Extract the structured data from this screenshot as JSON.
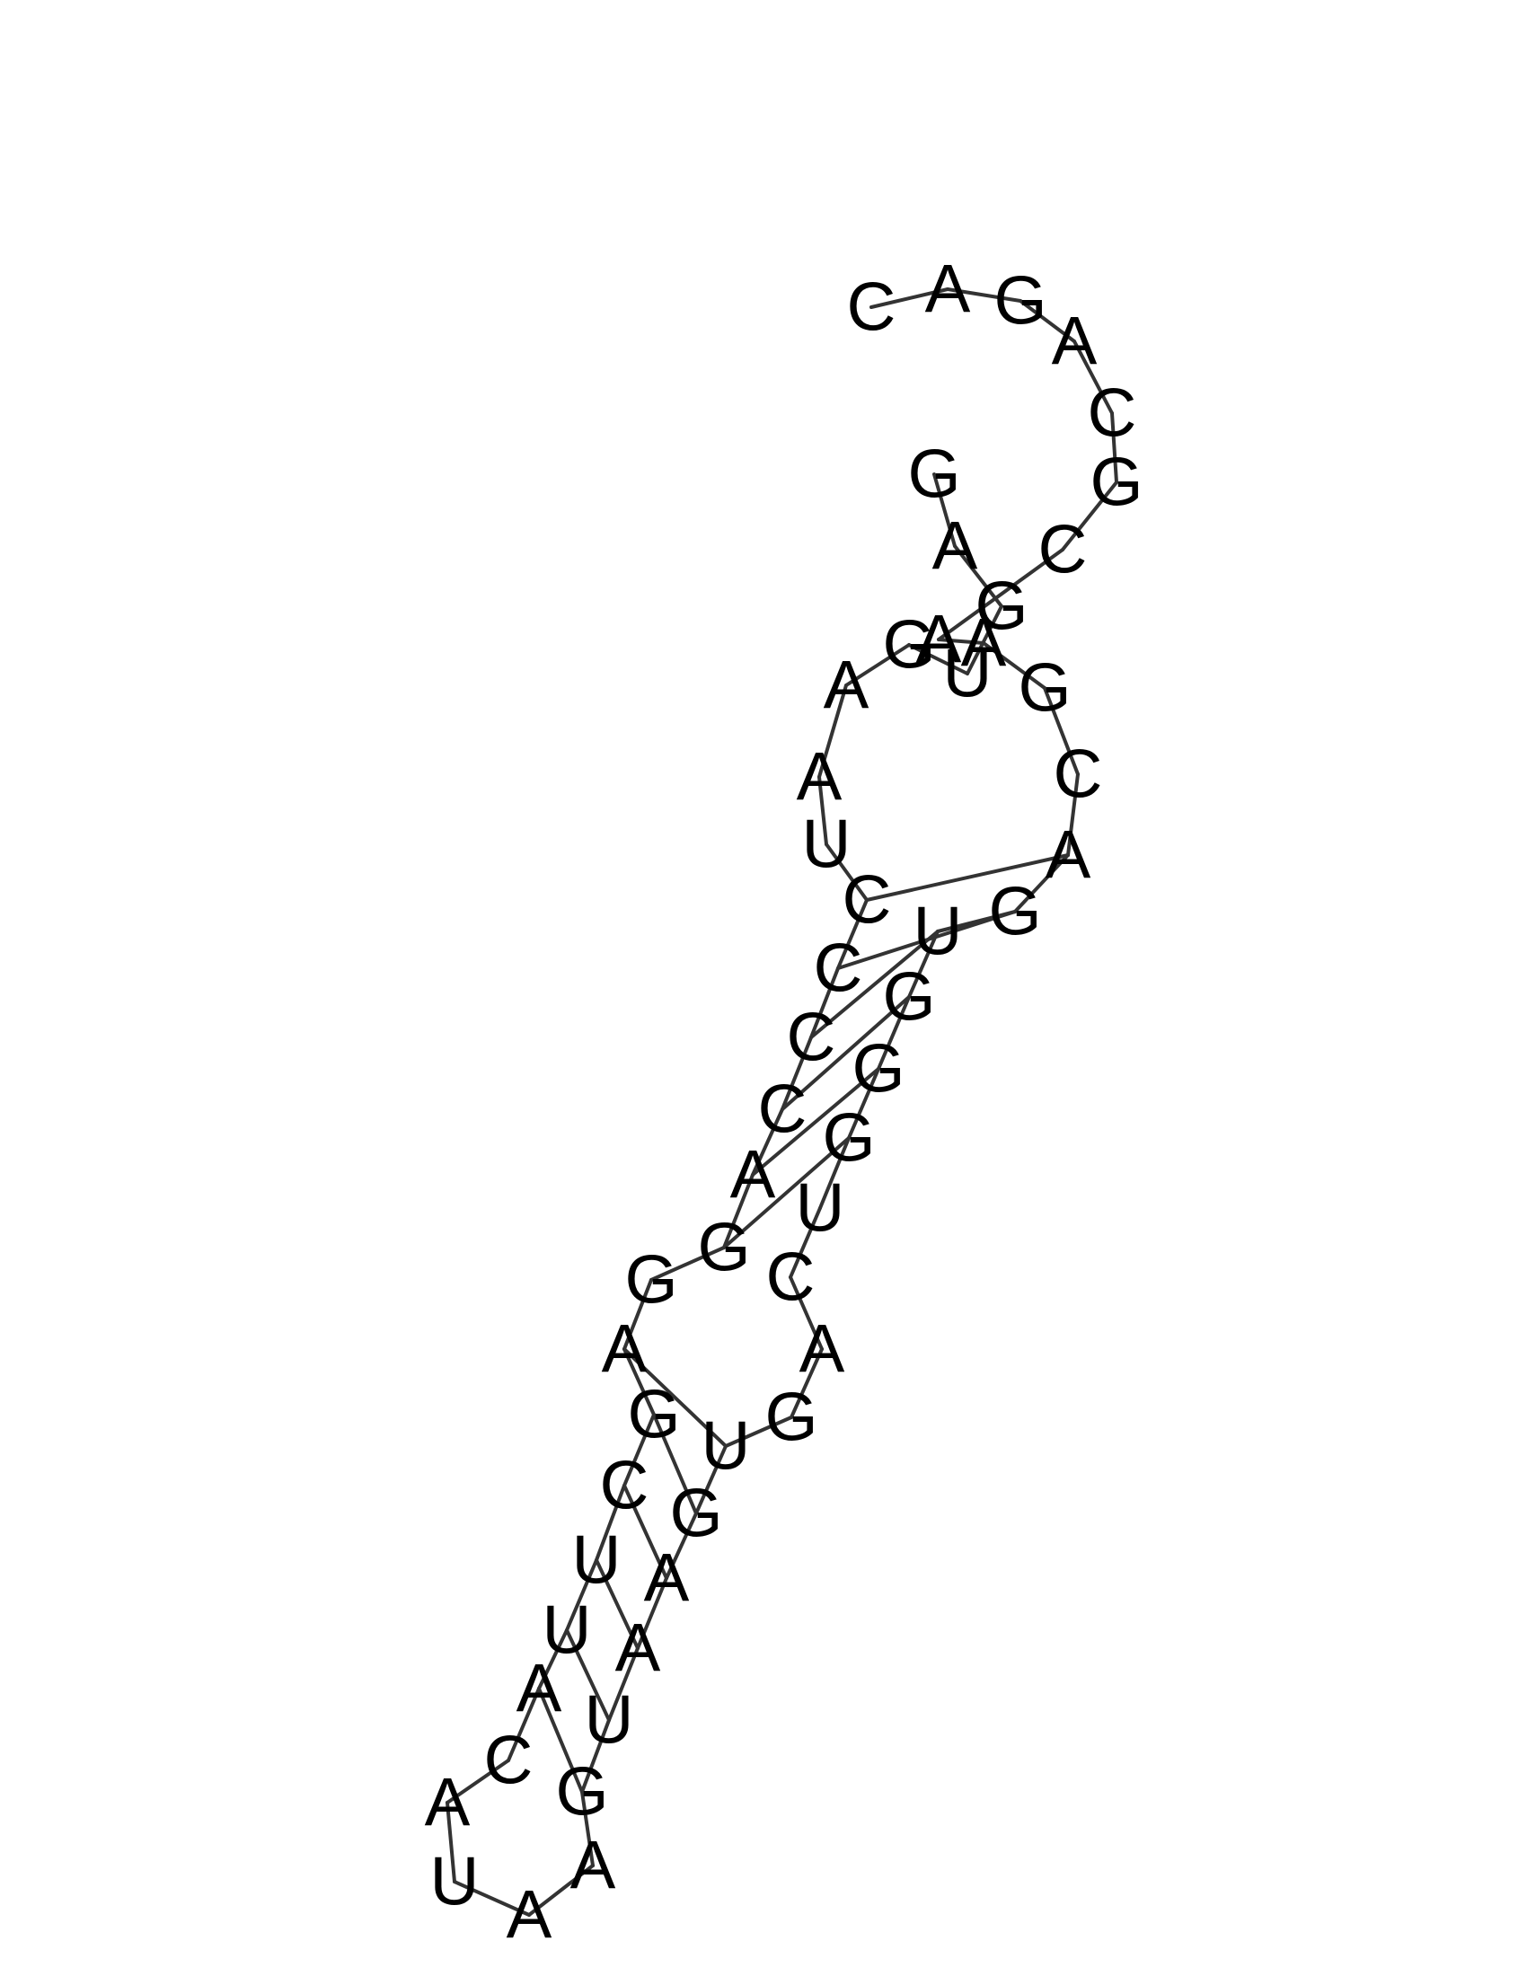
{
  "sequence": [
    "G",
    "A",
    "G",
    "U",
    "G",
    "A",
    "A",
    "U",
    "C",
    "C",
    "C",
    "C",
    "A",
    "G",
    "G",
    "A",
    "G",
    "C",
    "U",
    "U",
    "A",
    "C",
    "A",
    "U",
    "A",
    "A",
    "G",
    "U",
    "A",
    "A",
    "G",
    "U",
    "G",
    "A",
    "C",
    "U",
    "G",
    "G",
    "G",
    "U",
    "G",
    "A",
    "C",
    "G",
    "A",
    "A",
    "C",
    "G",
    "C",
    "A",
    "G",
    "A",
    "C"
  ],
  "colors": {
    "bond": "#333333",
    "letter": "#000000",
    "background": "#ffffff"
  }
}
